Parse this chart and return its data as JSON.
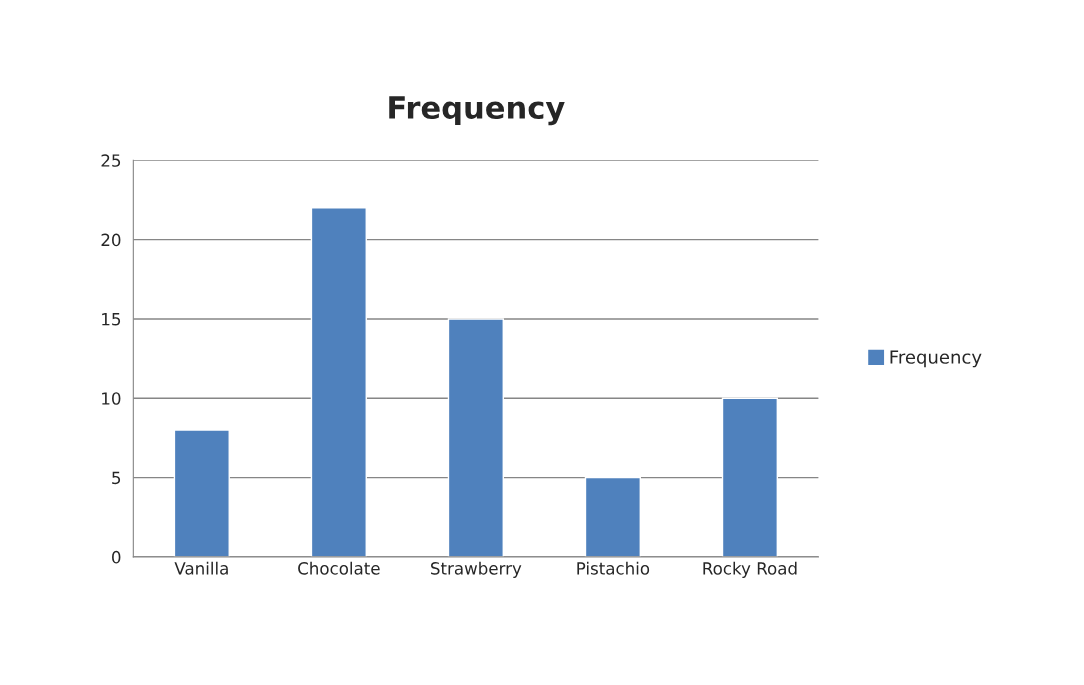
{
  "chart_data": {
    "type": "bar",
    "title": "Frequency",
    "categories": [
      "Vanilla",
      "Chocolate",
      "Strawberry",
      "Pistachio",
      "Rocky Road"
    ],
    "series": [
      {
        "name": "Frequency",
        "color": "#4f81bd",
        "values": [
          8,
          22,
          15,
          5,
          10
        ]
      }
    ],
    "ylim": [
      0,
      25
    ],
    "yticks": [
      0,
      5,
      10,
      15,
      20,
      25
    ],
    "grid": "y",
    "legend": "right"
  }
}
